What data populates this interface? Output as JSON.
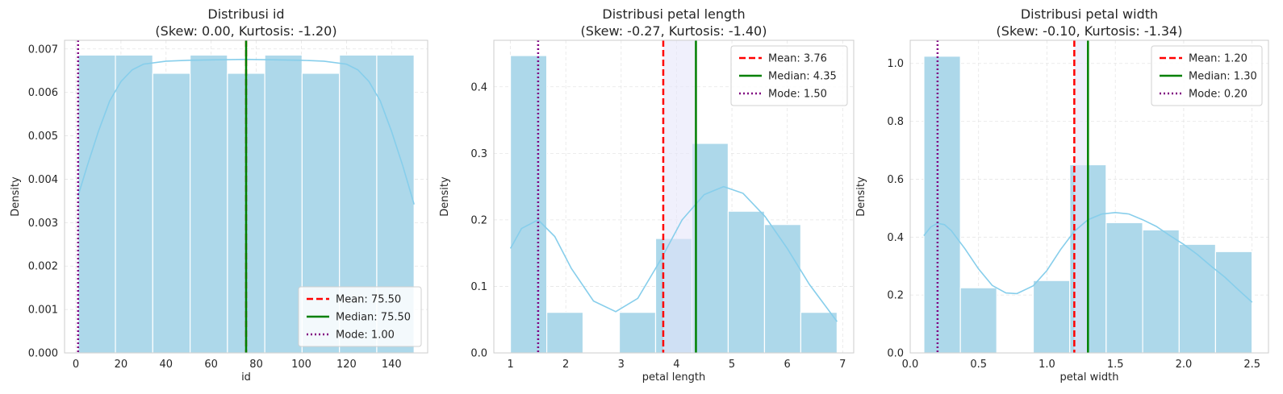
{
  "chart_data": [
    {
      "type": "bar",
      "title": "Distribusi id",
      "subtitle": "(Skew: 0.00, Kurtosis: -1.20)",
      "xlabel": "id",
      "ylabel": "Density",
      "xlim": [
        -5,
        156
      ],
      "ylim": [
        0,
        0.0072
      ],
      "xticks": [
        0,
        20,
        40,
        60,
        80,
        100,
        120,
        140
      ],
      "xtick_labels": [
        "0",
        "20",
        "40",
        "60",
        "80",
        "100",
        "120",
        "140"
      ],
      "yticks": [
        0,
        0.001,
        0.002,
        0.003,
        0.004,
        0.005,
        0.006,
        0.007
      ],
      "ytick_labels": [
        "0.000",
        "0.001",
        "0.002",
        "0.003",
        "0.004",
        "0.005",
        "0.006",
        "0.007"
      ],
      "bins": [
        [
          1.0,
          17.56,
          0.00686
        ],
        [
          17.56,
          34.11,
          0.00686
        ],
        [
          34.11,
          50.67,
          0.00644
        ],
        [
          50.67,
          67.22,
          0.00686
        ],
        [
          67.22,
          83.78,
          0.00644
        ],
        [
          83.78,
          100.33,
          0.00686
        ],
        [
          100.33,
          116.89,
          0.00644
        ],
        [
          116.89,
          133.44,
          0.00686
        ],
        [
          133.44,
          150.0,
          0.00686
        ]
      ],
      "kde": {
        "x": [
          1,
          5,
          10,
          15,
          20,
          25,
          30,
          40,
          50,
          60,
          75,
          90,
          100,
          110,
          120,
          125,
          130,
          135,
          140,
          145,
          150
        ],
        "y": [
          0.00362,
          0.0043,
          0.0051,
          0.0058,
          0.00625,
          0.00652,
          0.00665,
          0.00672,
          0.00674,
          0.00675,
          0.00676,
          0.00675,
          0.00674,
          0.00672,
          0.00665,
          0.00652,
          0.00625,
          0.0058,
          0.0051,
          0.0043,
          0.00342
        ]
      },
      "mean": 75.5,
      "median": 75.5,
      "mode": 1.0,
      "legend": {
        "position": "lower-right",
        "mean": "Mean: 75.50",
        "median": "Median: 75.50",
        "mode": "Mode: 1.00"
      },
      "grid": true
    },
    {
      "type": "bar",
      "title": "Distribusi petal length",
      "subtitle": "(Skew: -0.27, Kurtosis: -1.40)",
      "xlabel": "petal length",
      "ylabel": "Density",
      "xlim": [
        0.7,
        7.2
      ],
      "ylim": [
        0,
        0.47
      ],
      "xticks": [
        1,
        2,
        3,
        4,
        5,
        6,
        7
      ],
      "xtick_labels": [
        "1",
        "2",
        "3",
        "4",
        "5",
        "6",
        "7"
      ],
      "yticks": [
        0,
        0.1,
        0.2,
        0.3,
        0.4
      ],
      "ytick_labels": [
        "0.0",
        "0.1",
        "0.2",
        "0.3",
        "0.4"
      ],
      "bins": [
        [
          1.0,
          1.656,
          0.447
        ],
        [
          1.656,
          2.311,
          0.061
        ],
        [
          2.311,
          2.967,
          0.0
        ],
        [
          2.967,
          3.622,
          0.061
        ],
        [
          3.622,
          4.278,
          0.172
        ],
        [
          4.278,
          4.933,
          0.315
        ],
        [
          4.933,
          5.589,
          0.213
        ],
        [
          5.589,
          6.244,
          0.193
        ],
        [
          6.244,
          6.9,
          0.061
        ]
      ],
      "kde": {
        "x": [
          1.0,
          1.2,
          1.5,
          1.8,
          2.1,
          2.5,
          2.9,
          3.3,
          3.7,
          4.1,
          4.5,
          4.85,
          5.2,
          5.6,
          6.0,
          6.4,
          6.9
        ],
        "y": [
          0.157,
          0.187,
          0.2,
          0.175,
          0.127,
          0.078,
          0.062,
          0.082,
          0.138,
          0.2,
          0.238,
          0.25,
          0.24,
          0.205,
          0.157,
          0.103,
          0.047
        ]
      },
      "mean": 3.76,
      "median": 4.35,
      "mode": 1.5,
      "legend": {
        "position": "upper-right",
        "mean": "Mean: 3.76",
        "median": "Median: 4.35",
        "mode": "Mode: 1.50"
      },
      "grid": true
    },
    {
      "type": "bar",
      "title": "Distribusi petal width",
      "subtitle": "(Skew: -0.10, Kurtosis: -1.34)",
      "xlabel": "petal width",
      "ylabel": "Density",
      "xlim": [
        0.0,
        2.62
      ],
      "ylim": [
        0,
        1.08
      ],
      "xticks": [
        0.0,
        0.5,
        1.0,
        1.5,
        2.0,
        2.5
      ],
      "xtick_labels": [
        "0.0",
        "0.5",
        "1.0",
        "1.5",
        "2.0",
        "2.5"
      ],
      "yticks": [
        0,
        0.2,
        0.4,
        0.6,
        0.8,
        1.0
      ],
      "ytick_labels": [
        "0.0",
        "0.2",
        "0.4",
        "0.6",
        "0.8",
        "1.0"
      ],
      "bins": [
        [
          0.1,
          0.367,
          1.025
        ],
        [
          0.367,
          0.633,
          0.225
        ],
        [
          0.633,
          0.9,
          0.0
        ],
        [
          0.9,
          1.167,
          0.25
        ],
        [
          1.167,
          1.433,
          0.65
        ],
        [
          1.433,
          1.7,
          0.45
        ],
        [
          1.7,
          1.967,
          0.425
        ],
        [
          1.967,
          2.233,
          0.375
        ],
        [
          2.233,
          2.5,
          0.35
        ]
      ],
      "kde": {
        "x": [
          0.1,
          0.15,
          0.2,
          0.25,
          0.3,
          0.4,
          0.5,
          0.6,
          0.7,
          0.78,
          0.9,
          1.0,
          1.1,
          1.2,
          1.3,
          1.4,
          1.5,
          1.6,
          1.7,
          1.8,
          1.9,
          2.0,
          2.1,
          2.2,
          2.3,
          2.4,
          2.5
        ],
        "y": [
          0.405,
          0.435,
          0.448,
          0.443,
          0.423,
          0.36,
          0.29,
          0.233,
          0.207,
          0.205,
          0.232,
          0.285,
          0.357,
          0.42,
          0.46,
          0.48,
          0.485,
          0.48,
          0.46,
          0.437,
          0.405,
          0.375,
          0.34,
          0.3,
          0.262,
          0.218,
          0.175
        ]
      },
      "mean": 1.2,
      "median": 1.3,
      "mode": 0.2,
      "legend": {
        "position": "upper-right",
        "mean": "Mean: 1.20",
        "median": "Median: 1.30",
        "mode": "Mode: 0.20"
      },
      "grid": true
    }
  ],
  "colors": {
    "bar": "#add8ea",
    "kde": "#87ceeb",
    "mean": "#ff0000",
    "median": "#008000",
    "mode": "#800080",
    "band": "#e6e6fa",
    "grid": "#e5e5e5",
    "spine": "#cccccc"
  }
}
